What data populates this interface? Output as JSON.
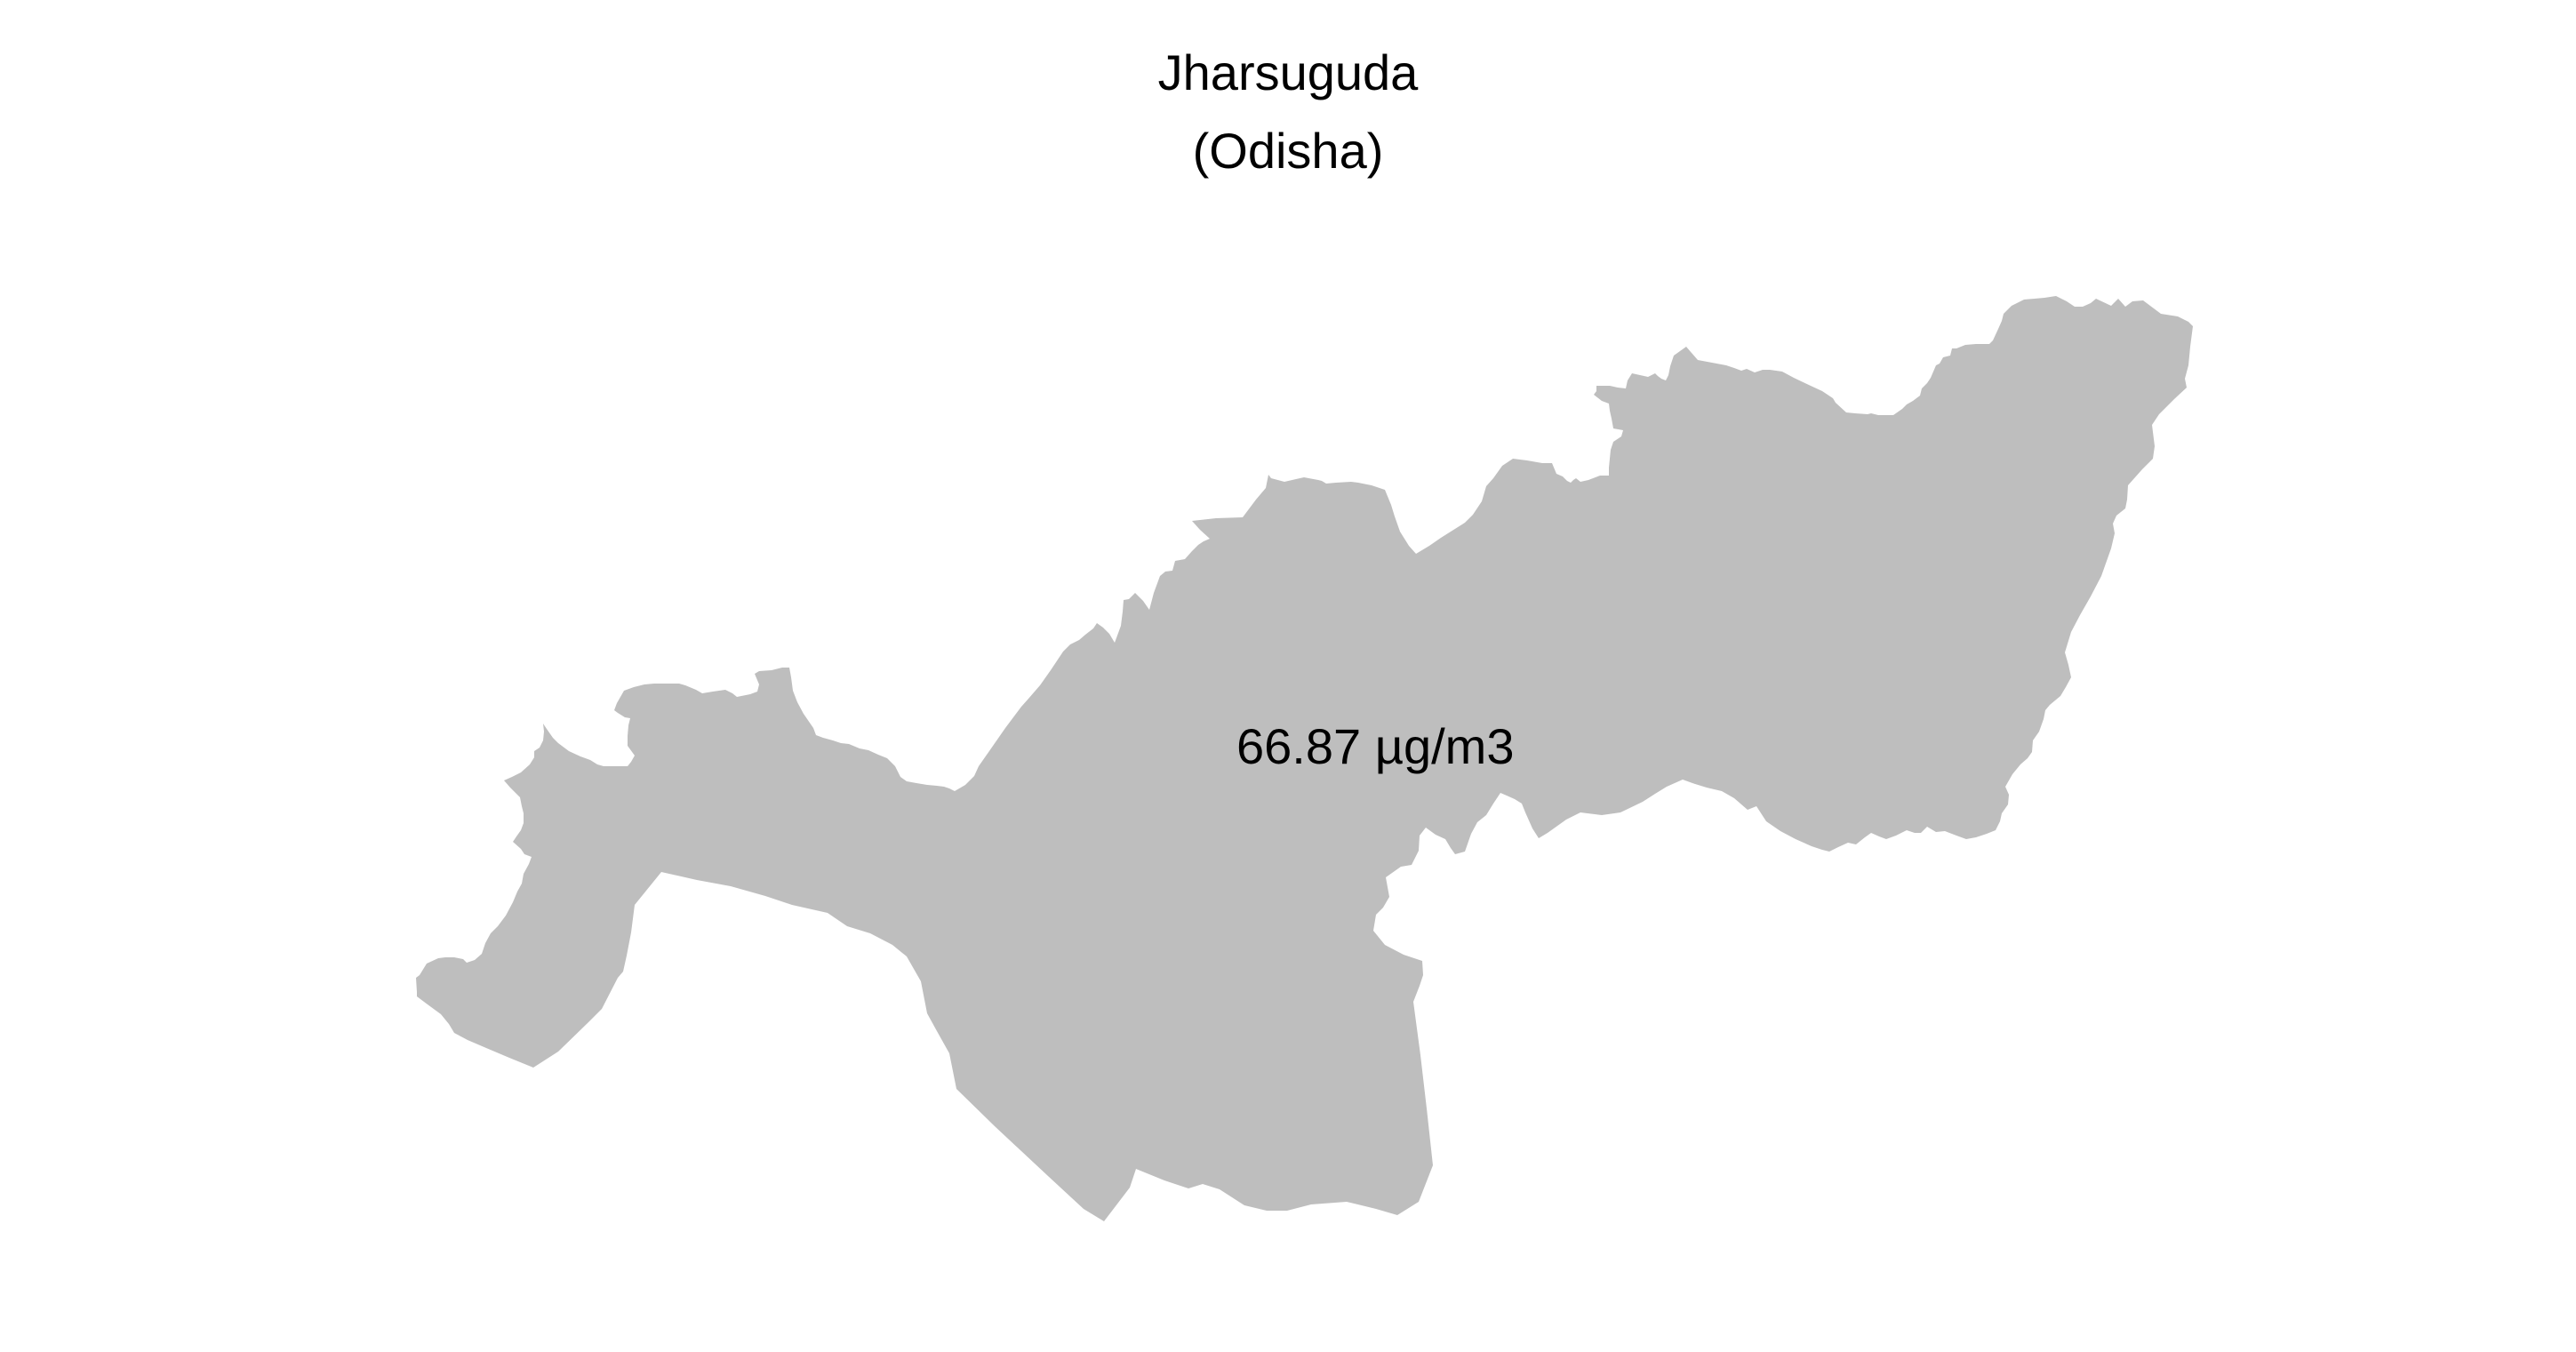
{
  "map": {
    "title": "Jharsuguda",
    "subtitle": "(Odisha)",
    "region_label": "66.87 µg/m3",
    "fill_color": "#bebebe",
    "background_color": "#ffffff",
    "text_color": "#000000"
  }
}
